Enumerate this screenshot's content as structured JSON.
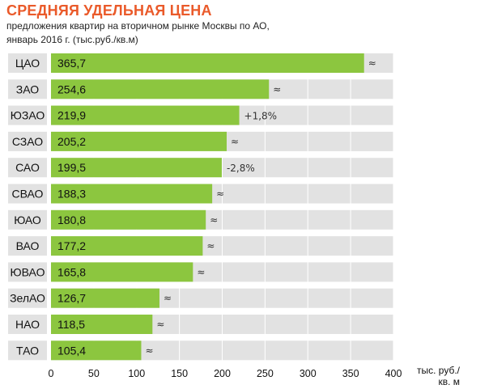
{
  "header": {
    "title": "СРЕДНЯЯ УДЕЛЬНАЯ ЦЕНА",
    "subtitle_line1": "предложения квартир на вторичном рынке Москвы по АО,",
    "subtitle_line2": "январь 2016 г. (тыс.руб./кв.м)"
  },
  "colors": {
    "bar": "#8cc63f",
    "track": "#e2e2e2",
    "category_box": "#e2e2e2",
    "title": "#ea5a2a"
  },
  "chart_data": {
    "type": "bar",
    "orientation": "horizontal",
    "title": "СРЕДНЯЯ УДЕЛЬНАЯ ЦЕНА",
    "subtitle": "предложения квартир на вторичном рынке Москвы по АО, январь 2016 г. (тыс.руб./кв.м)",
    "categories": [
      "ЦАО",
      "ЗАО",
      "ЮЗАО",
      "СЗАО",
      "САО",
      "СВАО",
      "ЮАО",
      "ВАО",
      "ЮВАО",
      "ЗелАО",
      "НАО",
      "ТАО"
    ],
    "values": [
      365.7,
      254.6,
      219.9,
      205.2,
      199.5,
      188.3,
      180.8,
      177.2,
      165.8,
      126.7,
      118.5,
      105.4
    ],
    "value_labels": [
      "365,7",
      "254,6",
      "219,9",
      "205,2",
      "199,5",
      "188,3",
      "180,8",
      "177,2",
      "165,8",
      "126,7",
      "118,5",
      "105,4"
    ],
    "change_labels": [
      "≈",
      "≈",
      "+1,8%",
      "≈",
      "-2,8%",
      "≈",
      "≈",
      "≈",
      "≈",
      "≈",
      "≈",
      "≈"
    ],
    "xlim": [
      0,
      400
    ],
    "x_ticks": [
      0,
      50,
      100,
      150,
      200,
      250,
      300,
      350,
      400
    ],
    "x_tick_labels": [
      "0",
      "50",
      "100",
      "150",
      "200",
      "250",
      "300",
      "350",
      "400"
    ],
    "xlabel_line1": "тыс. руб./",
    "xlabel_line2": "кв. м",
    "grid": true
  }
}
